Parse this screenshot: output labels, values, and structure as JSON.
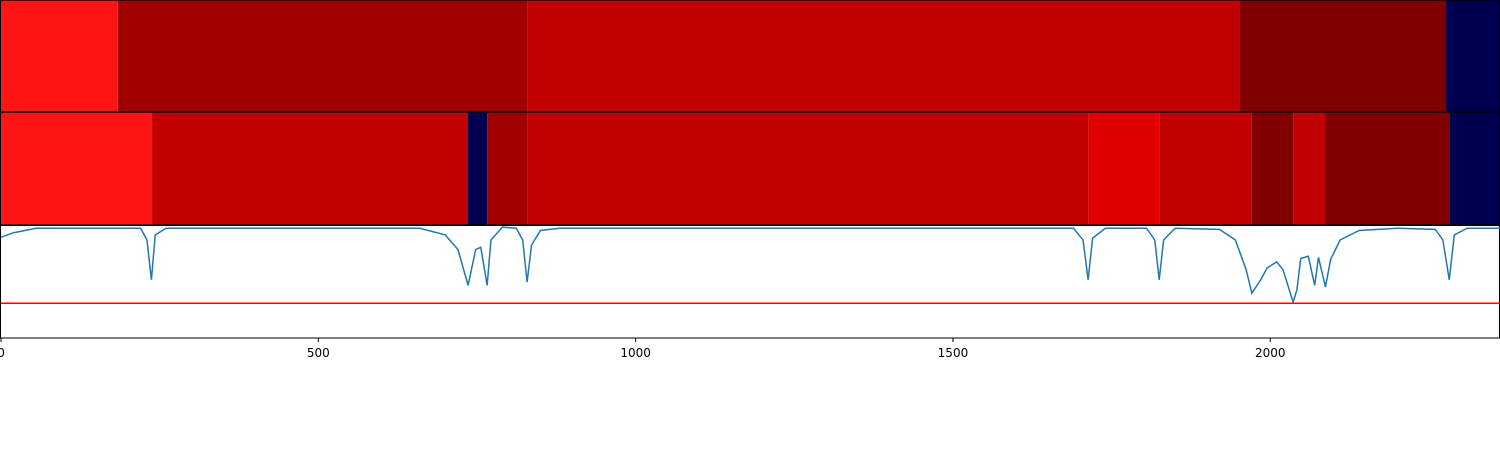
{
  "chart_data": {
    "type": "line",
    "xlim": [
      0,
      2362
    ],
    "xticks": [
      0,
      500,
      1000,
      1500,
      2000
    ],
    "ylim": [
      0,
      1
    ],
    "bands": [
      {
        "edges": [
          0,
          184,
          829,
          1951,
          2277,
          2362
        ],
        "colors": [
          "#ff1414",
          "#a00000",
          "#c20000",
          "#800000",
          "#000050"
        ]
      },
      {
        "edges": [
          0,
          238,
          736,
          766,
          829,
          1713,
          1825,
          1971,
          2036,
          2087,
          2282,
          2362
        ],
        "colors": [
          "#ff1414",
          "#c20000",
          "#000050",
          "#a00000",
          "#c20000",
          "#e00000",
          "#c20000",
          "#800000",
          "#c20000",
          "#800000",
          "#000050"
        ]
      }
    ],
    "threshold": {
      "value": 0.31,
      "color": "#ff0000"
    },
    "series": [
      {
        "color": "#1f77b4",
        "x": [
          0,
          20,
          55,
          220,
          230,
          237,
          243,
          260,
          660,
          700,
          720,
          736,
          748,
          756,
          766,
          772,
          790,
          812,
          822,
          829,
          836,
          850,
          880,
          1690,
          1705,
          1713,
          1720,
          1740,
          1805,
          1818,
          1825,
          1832,
          1850,
          1920,
          1945,
          1962,
          1971,
          1985,
          1995,
          2010,
          2020,
          2030,
          2036,
          2042,
          2048,
          2060,
          2070,
          2076,
          2087,
          2095,
          2110,
          2140,
          2200,
          2260,
          2272,
          2282,
          2290,
          2310,
          2362
        ],
        "values": [
          0.9,
          0.94,
          0.98,
          0.98,
          0.875,
          0.52,
          0.92,
          0.98,
          0.98,
          0.92,
          0.79,
          0.47,
          0.79,
          0.81,
          0.47,
          0.875,
          0.99,
          0.98,
          0.875,
          0.5,
          0.83,
          0.96,
          0.98,
          0.98,
          0.875,
          0.52,
          0.89,
          0.98,
          0.98,
          0.875,
          0.52,
          0.875,
          0.98,
          0.97,
          0.875,
          0.61,
          0.4,
          0.52,
          0.625,
          0.68,
          0.61,
          0.43,
          0.32,
          0.43,
          0.71,
          0.73,
          0.47,
          0.72,
          0.455,
          0.7,
          0.875,
          0.96,
          0.98,
          0.97,
          0.875,
          0.52,
          0.92,
          0.98,
          0.98
        ]
      }
    ]
  }
}
